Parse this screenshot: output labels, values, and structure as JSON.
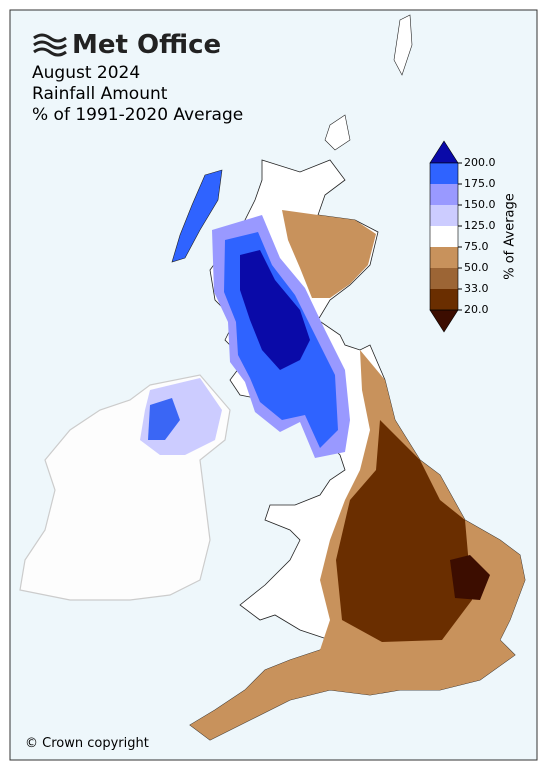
{
  "logo": "Met Office",
  "title": [
    "August 2024",
    "Rainfall Amount",
    "% of 1991-2020 Average"
  ],
  "legend": {
    "label": "% of Average",
    "ticks": [
      {
        "value": 200,
        "label": "200.0"
      },
      {
        "value": 175,
        "label": "175.0"
      },
      {
        "value": 150,
        "label": "150.0"
      },
      {
        "value": 125,
        "label": "125.0"
      },
      {
        "value": 75,
        "label": "75.0"
      },
      {
        "value": 50,
        "label": "50.0"
      },
      {
        "value": 33,
        "label": "33.0"
      },
      {
        "value": 20,
        "label": "20.0"
      }
    ],
    "colors": [
      "#0a0aa8",
      "#2f63ff",
      "#9999ff",
      "#ccccff",
      "#ffffff",
      "#c8925c",
      "#9c6535",
      "#6a2e00",
      "#3c0d00"
    ]
  },
  "copyright": "© Crown copyright"
}
